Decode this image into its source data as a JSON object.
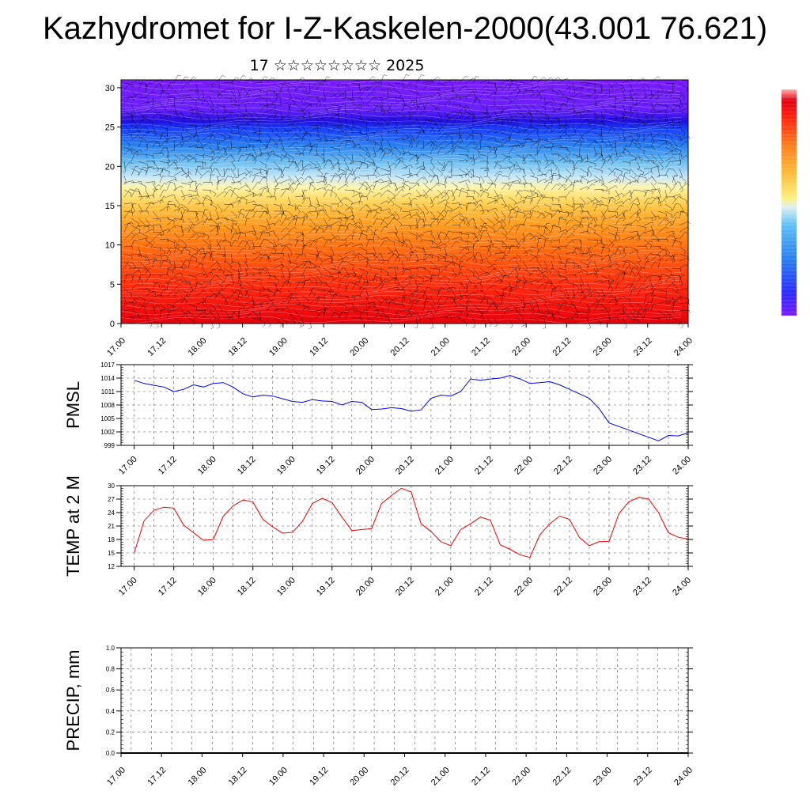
{
  "title": "Kazhydromet for I-Z-Kaskelen-2000(43.001 76.621)",
  "subtitle": "17 ☆☆☆☆☆☆☆☆ 2025",
  "colors": {
    "pmsl_line": "#0000ee",
    "temp_line": "#ee0000",
    "precip_line": "#000000",
    "barb": "#000000",
    "colorbar": [
      "#7a1cff",
      "#3a2cff",
      "#2a6cff",
      "#3aa0f0",
      "#8fd0f8",
      "#dff0f0",
      "#ffe080",
      "#ffc040",
      "#ff9020",
      "#ff4010",
      "#e00010",
      "#ff8080"
    ]
  },
  "chart_data": [
    {
      "id": "cross-section",
      "type": "heatmap",
      "title": "",
      "xlabel": "",
      "ylabel": "",
      "xticks": [
        "17.00",
        "17.12",
        "18.00",
        "18.12",
        "19.00",
        "19.12",
        "20.00",
        "20.12",
        "21.00",
        "21.12",
        "22.00",
        "22.12",
        "23.00",
        "23.12",
        "24.00"
      ],
      "yticks": [
        "0",
        "5",
        "10",
        "15",
        "20",
        "25",
        "30"
      ],
      "ylim": [
        0,
        31
      ],
      "overlay": "wind barbs",
      "colorbar_position": "right"
    },
    {
      "id": "pmsl",
      "type": "line",
      "ylabel": "PMSL",
      "yticks": [
        "999",
        "1002",
        "1005",
        "1008",
        "1011",
        "1014",
        "1017"
      ],
      "ylim": [
        999,
        1017
      ],
      "xticks": [
        "17.00",
        "17.12",
        "18.00",
        "18.12",
        "19.00",
        "19.12",
        "20.00",
        "20.12",
        "21.00",
        "21.12",
        "22.00",
        "22.12",
        "23.00",
        "23.12",
        "24.00"
      ],
      "xlim": [
        -4,
        168
      ],
      "x": [
        0,
        6,
        12,
        18,
        24,
        30,
        36,
        42,
        48,
        54,
        60,
        66,
        72,
        78,
        84,
        90,
        96,
        102,
        108,
        114,
        120,
        126,
        132,
        138,
        144,
        150,
        156,
        162
      ],
      "series": [
        {
          "name": "",
          "x": [
            0,
            3,
            6,
            9,
            12,
            15,
            18,
            21,
            24,
            27,
            30,
            33,
            36,
            39,
            42,
            45,
            48,
            51,
            54,
            57,
            60,
            63,
            66,
            69,
            72,
            75,
            78,
            81,
            84,
            87,
            90,
            93,
            96,
            99,
            102,
            105,
            108,
            111,
            114,
            117,
            120,
            123,
            126,
            129,
            132,
            135,
            138,
            141,
            144,
            147,
            150,
            153,
            156,
            159,
            162,
            165,
            168
          ],
          "values": [
            1013.5,
            1012.8,
            1012.4,
            1012.0,
            1011.0,
            1011.5,
            1012.5,
            1012.0,
            1012.8,
            1013.0,
            1012.0,
            1010.5,
            1009.8,
            1010.2,
            1010.0,
            1009.4,
            1008.8,
            1008.6,
            1009.2,
            1008.9,
            1008.8,
            1008.0,
            1008.8,
            1008.6,
            1007.0,
            1007.1,
            1007.4,
            1007.2,
            1006.6,
            1006.9,
            1009.5,
            1010.2,
            1010.0,
            1011.0,
            1013.8,
            1013.5,
            1013.8,
            1014.0,
            1014.6,
            1013.8,
            1012.8,
            1013.0,
            1013.2,
            1012.5,
            1011.5,
            1010.5,
            1009.5,
            1007.2,
            1004.0,
            1003.2,
            1002.4,
            1001.6,
            1000.8,
            1000.0,
            1001.2,
            1001.1,
            1001.8
          ]
        }
      ]
    },
    {
      "id": "temp",
      "type": "line",
      "ylabel": "TEMP at 2 M",
      "yticks": [
        "12",
        "15",
        "18",
        "21",
        "24",
        "27",
        "30"
      ],
      "ylim": [
        12,
        30
      ],
      "xticks": [
        "17.00",
        "17.12",
        "18.00",
        "18.12",
        "19.00",
        "19.12",
        "20.00",
        "20.12",
        "21.00",
        "21.12",
        "22.00",
        "22.12",
        "23.00",
        "23.12",
        "24.00"
      ],
      "xlim": [
        -4,
        168
      ],
      "series": [
        {
          "name": "",
          "x": [
            0,
            3,
            6,
            9,
            12,
            15,
            18,
            21,
            24,
            27,
            30,
            33,
            36,
            39,
            42,
            45,
            48,
            51,
            54,
            57,
            60,
            63,
            66,
            69,
            72,
            75,
            78,
            81,
            84,
            87,
            90,
            93,
            96,
            99,
            102,
            105,
            108,
            111,
            114,
            117,
            120,
            123,
            126,
            129,
            132,
            135,
            138,
            141,
            144,
            147,
            150,
            153,
            156,
            159,
            162,
            165,
            168
          ],
          "values": [
            15.0,
            22.2,
            24.5,
            25.2,
            25.0,
            21.2,
            19.5,
            17.8,
            18.0,
            23.2,
            25.5,
            26.8,
            26.4,
            22.5,
            20.8,
            19.4,
            19.6,
            22.0,
            26.0,
            27.2,
            26.2,
            23.0,
            20.0,
            20.2,
            20.4,
            26.0,
            27.8,
            29.4,
            28.6,
            21.5,
            19.8,
            17.5,
            16.6,
            20.2,
            21.5,
            23.0,
            22.3,
            16.8,
            15.8,
            14.6,
            14.0,
            19.0,
            21.5,
            23.2,
            22.5,
            18.5,
            16.6,
            17.5,
            17.6,
            23.8,
            26.4,
            27.4,
            27.0,
            24.0,
            19.5,
            18.5,
            18.1
          ]
        }
      ]
    },
    {
      "id": "precip",
      "type": "line",
      "ylabel": "PRECIP, mm",
      "yticks": [
        "0.0",
        "0.2",
        "0.4",
        "0.6",
        "0.8",
        "1.0"
      ],
      "ylim": [
        0,
        1
      ],
      "xticks": [
        "17.00",
        "17.12",
        "18.00",
        "18.12",
        "19.00",
        "19.12",
        "20.00",
        "20.12",
        "21.00",
        "21.12",
        "22.00",
        "22.12",
        "23.00",
        "23.12",
        "24.00"
      ],
      "series": [
        {
          "name": "",
          "x": [
            0,
            168
          ],
          "values": [
            0,
            0
          ]
        }
      ]
    }
  ]
}
